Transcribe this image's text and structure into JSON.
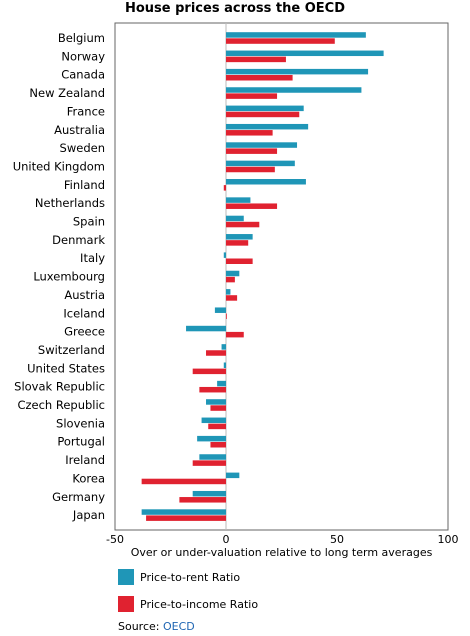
{
  "chart_data": {
    "type": "bar",
    "orientation": "horizontal",
    "title": "House prices across the OECD",
    "xlabel": "Over or under-valuation relative to long term averages",
    "xlim": [
      -50,
      100
    ],
    "xticks": [
      -50,
      0,
      50,
      100
    ],
    "grid": false,
    "legend_position": "bottom-left",
    "categories": [
      "Belgium",
      "Norway",
      "Canada",
      "New Zealand",
      "France",
      "Australia",
      "Sweden",
      "United Kingdom",
      "Finland",
      "Netherlands",
      "Spain",
      "Denmark",
      "Italy",
      "Luxembourg",
      "Austria",
      "Iceland",
      "Greece",
      "Switzerland",
      "United States",
      "Slovak Republic",
      "Czech Republic",
      "Slovenia",
      "Portugal",
      "Ireland",
      "Korea",
      "Germany",
      "Japan"
    ],
    "series": [
      {
        "name": "Price-to-rent Ratio",
        "color": "#1f96b7",
        "values": [
          63,
          71,
          64,
          61,
          35,
          37,
          32,
          31,
          36,
          11,
          8,
          12,
          -1,
          6,
          2,
          -5,
          -18,
          -2,
          -1,
          -4,
          -9,
          -11,
          -13,
          -12,
          6,
          -15,
          -38
        ]
      },
      {
        "name": "Price-to-income Ratio",
        "color": "#e02230",
        "values": [
          49,
          27,
          30,
          23,
          33,
          21,
          23,
          22,
          -1,
          23,
          15,
          10,
          12,
          4,
          5,
          0,
          8,
          -9,
          -15,
          -12,
          -7,
          -8,
          -7,
          -15,
          -38,
          -21,
          -36
        ]
      }
    ]
  },
  "source": {
    "label": "Source:",
    "link_text": "OECD"
  }
}
